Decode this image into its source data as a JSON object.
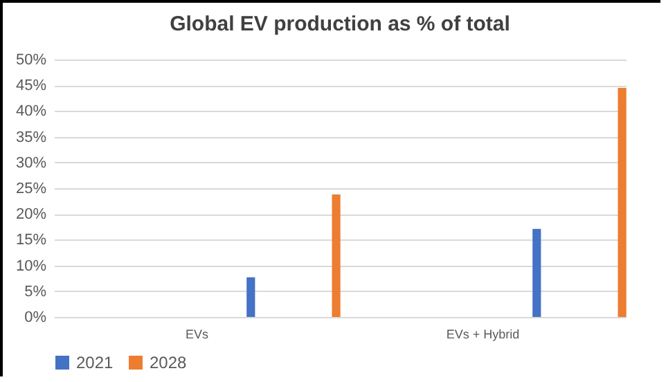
{
  "chart_data": {
    "type": "bar",
    "title": "Global EV production as % of total",
    "categories": [
      "EVs",
      "EVs + Hybrid"
    ],
    "series": [
      {
        "name": "2021",
        "color": "#4472c4",
        "values": [
          7.7,
          17.1
        ]
      },
      {
        "name": "2028",
        "color": "#ed7d31",
        "values": [
          23.8,
          44.5
        ]
      }
    ],
    "ylim": [
      0,
      50
    ],
    "yticks": [
      {
        "value": 0,
        "label": "0%"
      },
      {
        "value": 5,
        "label": "5%"
      },
      {
        "value": 10,
        "label": "10%"
      },
      {
        "value": 15,
        "label": "15%"
      },
      {
        "value": 20,
        "label": "20%"
      },
      {
        "value": 25,
        "label": "25%"
      },
      {
        "value": 30,
        "label": "30%"
      },
      {
        "value": 35,
        "label": "35%"
      },
      {
        "value": 40,
        "label": "40%"
      },
      {
        "value": 45,
        "label": "45%"
      },
      {
        "value": 50,
        "label": "50%"
      }
    ],
    "grid": "y",
    "legend": "bottom"
  }
}
